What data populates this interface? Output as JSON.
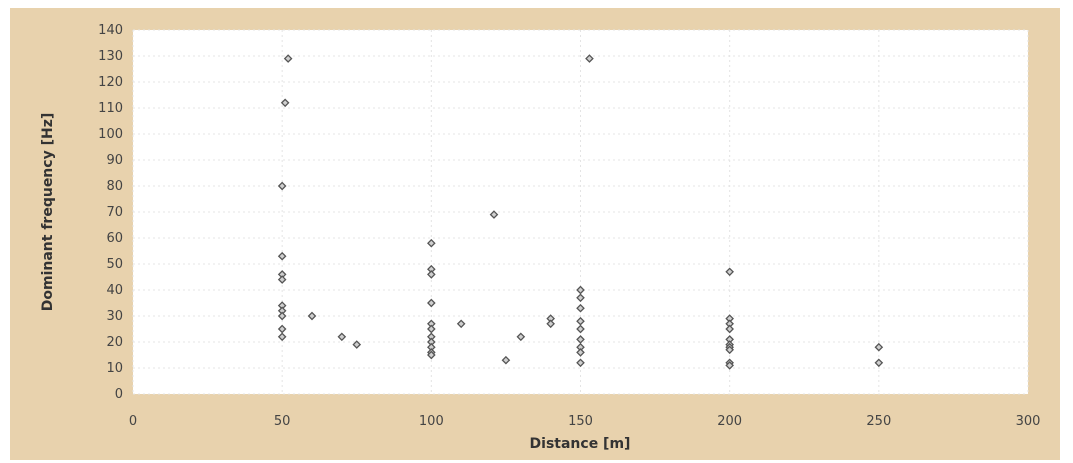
{
  "chart_data": {
    "type": "scatter",
    "title": "",
    "xlabel": "Distance [m]",
    "ylabel": "Dominant frequency [Hz]",
    "xlim": [
      0,
      300
    ],
    "ylim": [
      0,
      140
    ],
    "xticks": [
      0,
      50,
      100,
      150,
      200,
      250,
      300
    ],
    "yticks": [
      0,
      10,
      20,
      30,
      40,
      50,
      60,
      70,
      80,
      90,
      100,
      110,
      120,
      130,
      140
    ],
    "grid": true,
    "legend": "none",
    "colors": {
      "background": "#e8d2ad",
      "plot_area": "#ffffff",
      "marker_stroke": "#555555",
      "marker_fill": "#cfcfcf"
    },
    "series": [
      {
        "points": [
          [
            52,
            129
          ],
          [
            51,
            112
          ],
          [
            50,
            80
          ],
          [
            50,
            53
          ],
          [
            50,
            46
          ],
          [
            50,
            44
          ],
          [
            50,
            34
          ],
          [
            50,
            32
          ],
          [
            50,
            30
          ],
          [
            50,
            25
          ],
          [
            50,
            22
          ],
          [
            60,
            30
          ],
          [
            70,
            22
          ],
          [
            75,
            19
          ],
          [
            100,
            58
          ],
          [
            100,
            48
          ],
          [
            100,
            46
          ],
          [
            100,
            35
          ],
          [
            100,
            27
          ],
          [
            100,
            25
          ],
          [
            100,
            22
          ],
          [
            100,
            20
          ],
          [
            100,
            18
          ],
          [
            100,
            16
          ],
          [
            100,
            15
          ],
          [
            110,
            27
          ],
          [
            121,
            69
          ],
          [
            125,
            13
          ],
          [
            130,
            22
          ],
          [
            140,
            29
          ],
          [
            140,
            27
          ],
          [
            150,
            40
          ],
          [
            150,
            37
          ],
          [
            150,
            33
          ],
          [
            150,
            28
          ],
          [
            150,
            25
          ],
          [
            150,
            21
          ],
          [
            150,
            18
          ],
          [
            150,
            16
          ],
          [
            150,
            12
          ],
          [
            153,
            129
          ],
          [
            200,
            47
          ],
          [
            200,
            29
          ],
          [
            200,
            27
          ],
          [
            200,
            25
          ],
          [
            200,
            21
          ],
          [
            200,
            19
          ],
          [
            200,
            18
          ],
          [
            200,
            17
          ],
          [
            200,
            12
          ],
          [
            200,
            11
          ],
          [
            250,
            18
          ],
          [
            250,
            12
          ]
        ]
      }
    ]
  }
}
